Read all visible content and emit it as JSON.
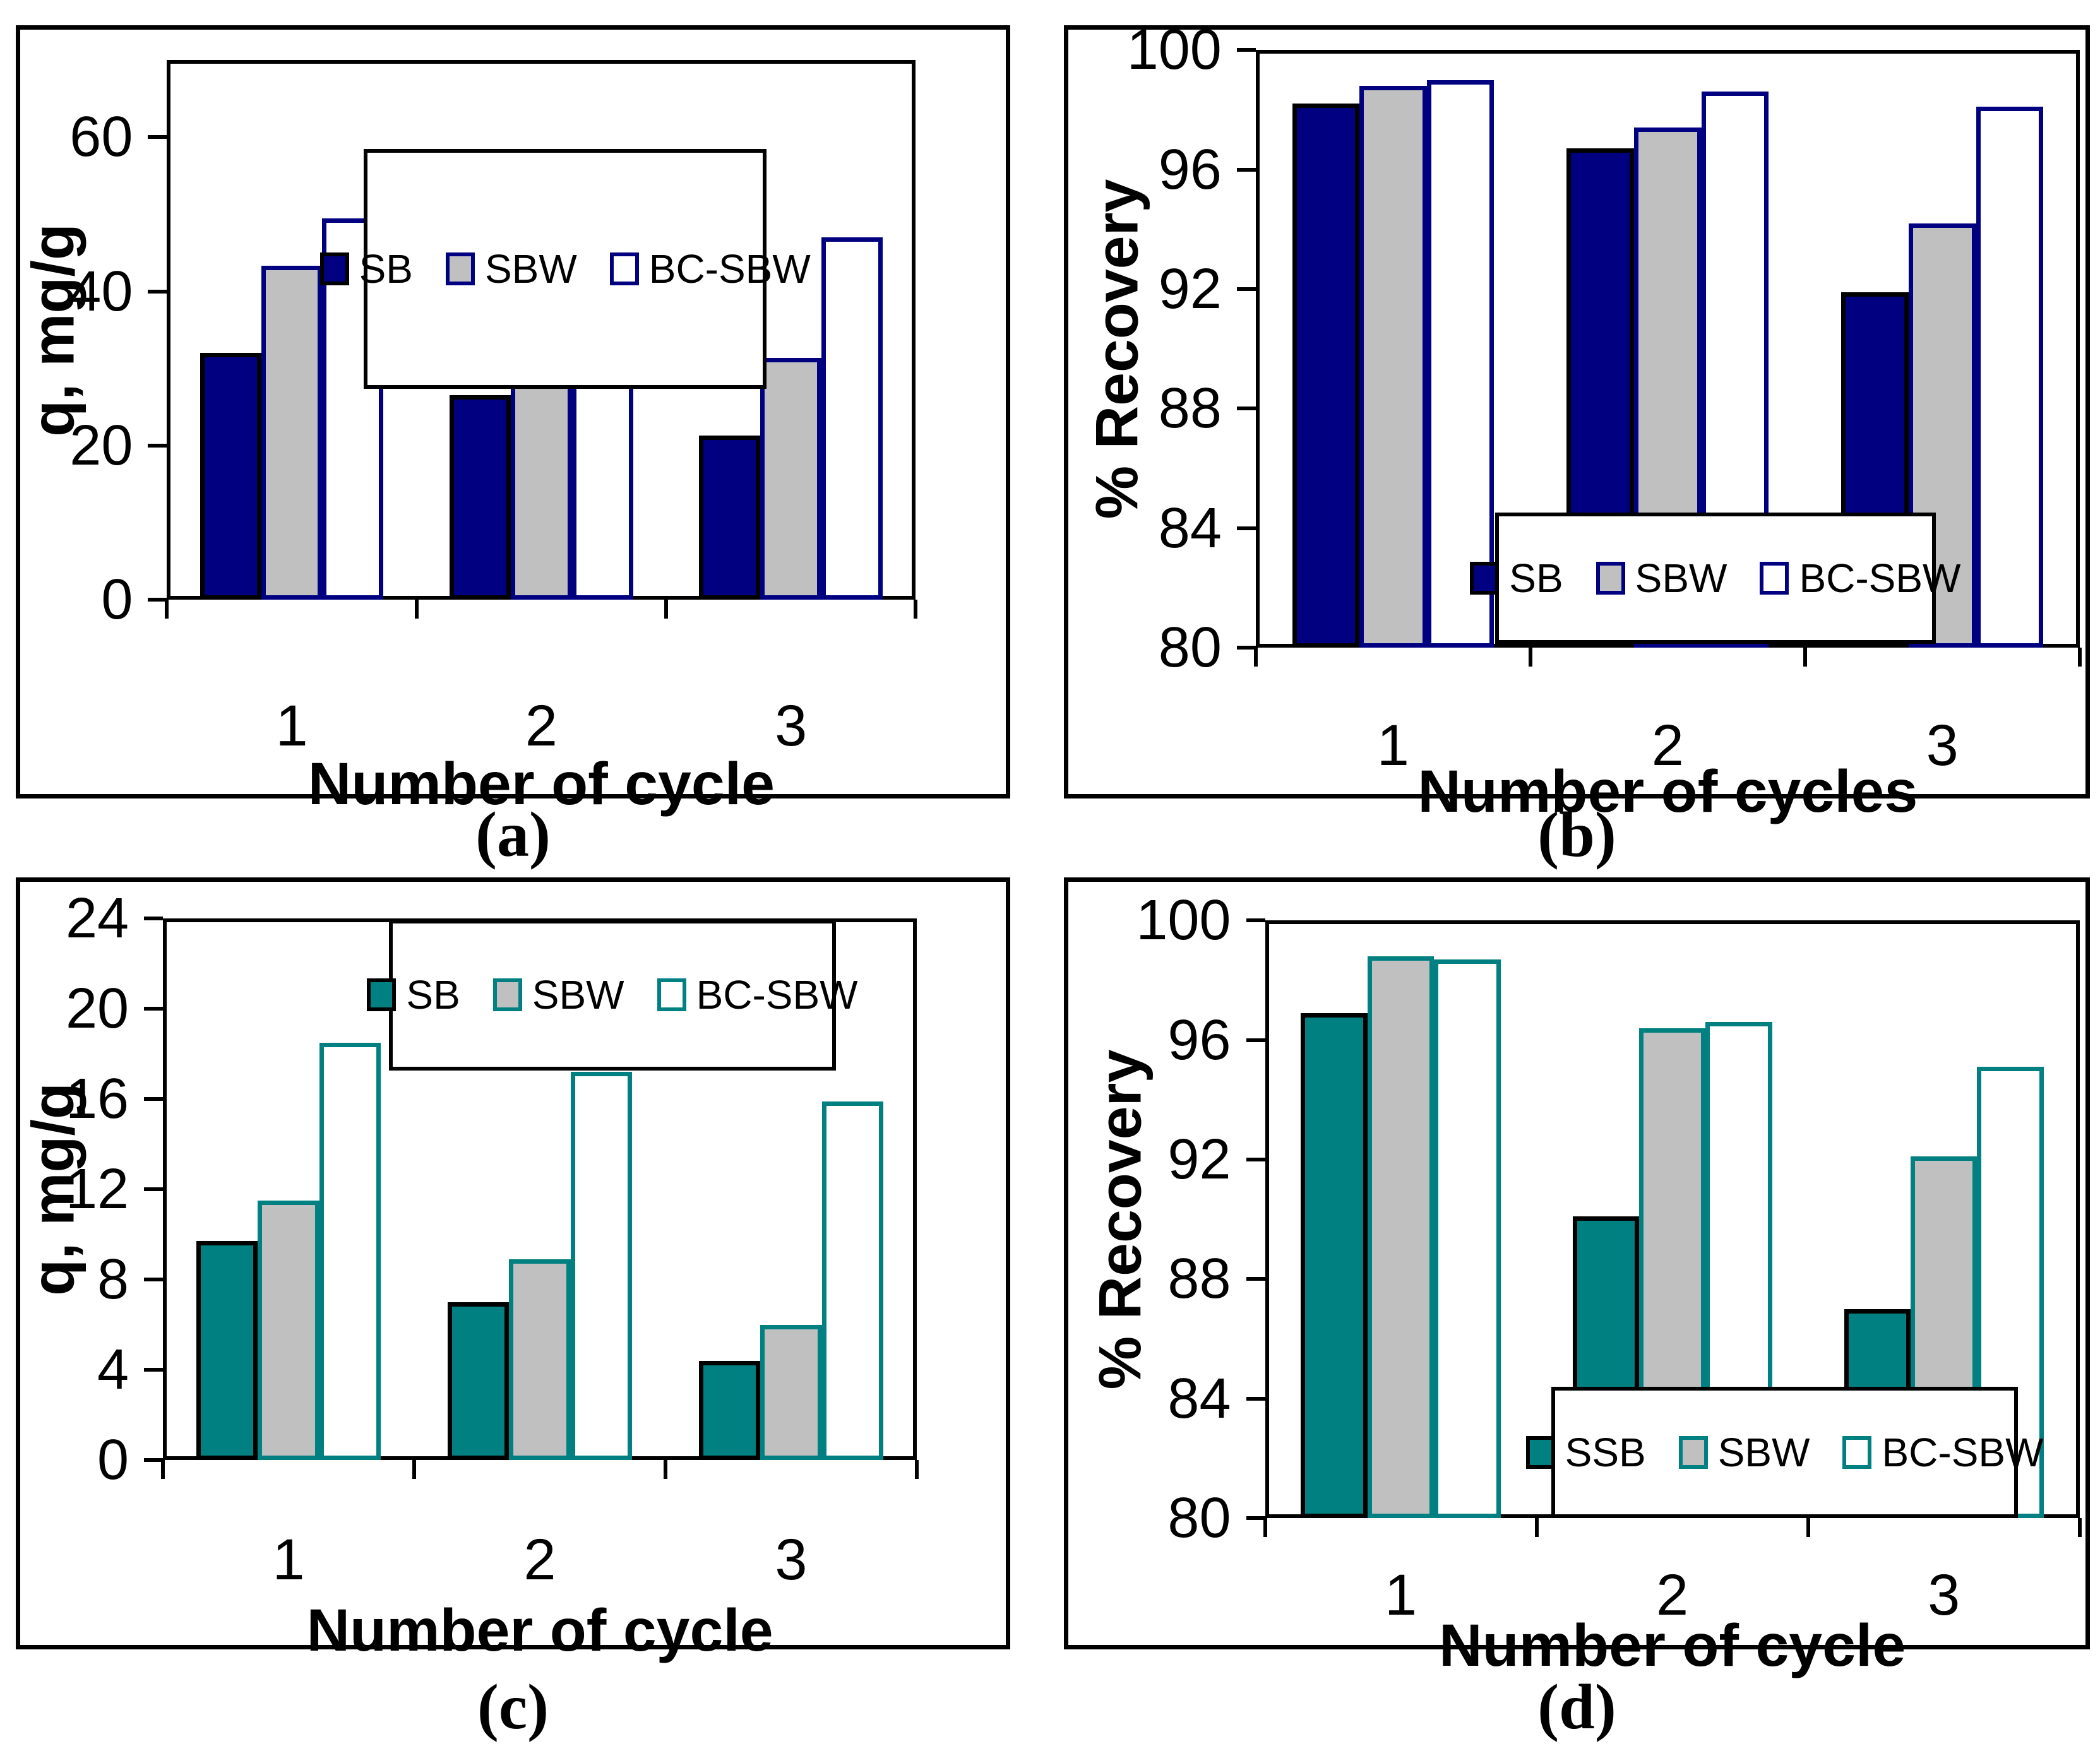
{
  "figure": {
    "background": "#ffffff",
    "text_color": "#000000"
  },
  "captions": [
    {
      "label": "(a)"
    },
    {
      "label": "(b)"
    },
    {
      "label": "(c)"
    },
    {
      "label": "(d)"
    }
  ],
  "chart_data": [
    {
      "id": "a",
      "type": "bar",
      "categories": [
        "1",
        "2",
        "3"
      ],
      "series": [
        {
          "name": "SB",
          "values": [
            32.0,
            26.5,
            21.3
          ]
        },
        {
          "name": "SBW",
          "values": [
            43.3,
            34.4,
            31.4
          ]
        },
        {
          "name": "BC-SBW",
          "values": [
            49.5,
            48.2,
            47.0
          ]
        }
      ],
      "xlabel": "Number of cycle",
      "ylabel": "q, mg/g",
      "ylim": [
        0,
        70
      ],
      "yticks": [
        0,
        20,
        40,
        60
      ],
      "grid": false,
      "legend_position": "inside-top-center",
      "colors": {
        "accent": "#000080",
        "series_fills": [
          "#000080",
          "#C0C0C0",
          "#FFFFFF"
        ],
        "series_borders": [
          "#000000",
          "#000080",
          "#000080"
        ]
      }
    },
    {
      "id": "b",
      "type": "bar",
      "categories": [
        "1",
        "2",
        "3"
      ],
      "series": [
        {
          "name": "SB",
          "values": [
            98.2,
            96.7,
            91.9
          ]
        },
        {
          "name": "SBW",
          "values": [
            98.8,
            97.4,
            94.2
          ]
        },
        {
          "name": "BC-SBW",
          "values": [
            99.0,
            98.6,
            98.1
          ]
        }
      ],
      "xlabel": "Number of cycles",
      "ylabel": "% Recovery",
      "ylim": [
        80,
        100
      ],
      "yticks": [
        80,
        84,
        88,
        92,
        96,
        100
      ],
      "grid": false,
      "legend_position": "inside-bottom-right",
      "colors": {
        "accent": "#000080",
        "series_fills": [
          "#000080",
          "#C0C0C0",
          "#FFFFFF"
        ],
        "series_borders": [
          "#000000",
          "#000080",
          "#000080"
        ]
      }
    },
    {
      "id": "c",
      "type": "bar",
      "categories": [
        "1",
        "2",
        "3"
      ],
      "series": [
        {
          "name": "SB",
          "values": [
            9.7,
            7.0,
            4.4
          ]
        },
        {
          "name": "SBW",
          "values": [
            11.5,
            8.9,
            6.0
          ]
        },
        {
          "name": "BC-SBW",
          "values": [
            18.5,
            17.2,
            15.9
          ]
        }
      ],
      "xlabel": "Number of cycle",
      "ylabel": "q, mg/g",
      "ylim": [
        0,
        24
      ],
      "yticks": [
        0,
        4,
        8,
        12,
        16,
        20,
        24
      ],
      "grid": false,
      "legend_position": "inside-top-center",
      "colors": {
        "accent": "#008080",
        "series_fills": [
          "#008080",
          "#C0C0C0",
          "#FFFFFF"
        ],
        "series_borders": [
          "#000000",
          "#008080",
          "#008080"
        ]
      }
    },
    {
      "id": "d",
      "type": "bar",
      "categories": [
        "1",
        "2",
        "3"
      ],
      "series": [
        {
          "name": "SSB",
          "values": [
            96.9,
            90.1,
            87.0
          ]
        },
        {
          "name": "SBW",
          "values": [
            98.8,
            96.4,
            92.1
          ]
        },
        {
          "name": "BC-SBW",
          "values": [
            98.7,
            96.6,
            95.1
          ]
        }
      ],
      "xlabel": "Number of cycle",
      "ylabel": "% Recovery",
      "ylim": [
        80,
        100
      ],
      "yticks": [
        80,
        84,
        88,
        92,
        96,
        100
      ],
      "grid": false,
      "legend_position": "inside-bottom-right",
      "colors": {
        "accent": "#008080",
        "series_fills": [
          "#008080",
          "#C0C0C0",
          "#FFFFFF"
        ],
        "series_borders": [
          "#000000",
          "#008080",
          "#008080"
        ]
      }
    }
  ]
}
